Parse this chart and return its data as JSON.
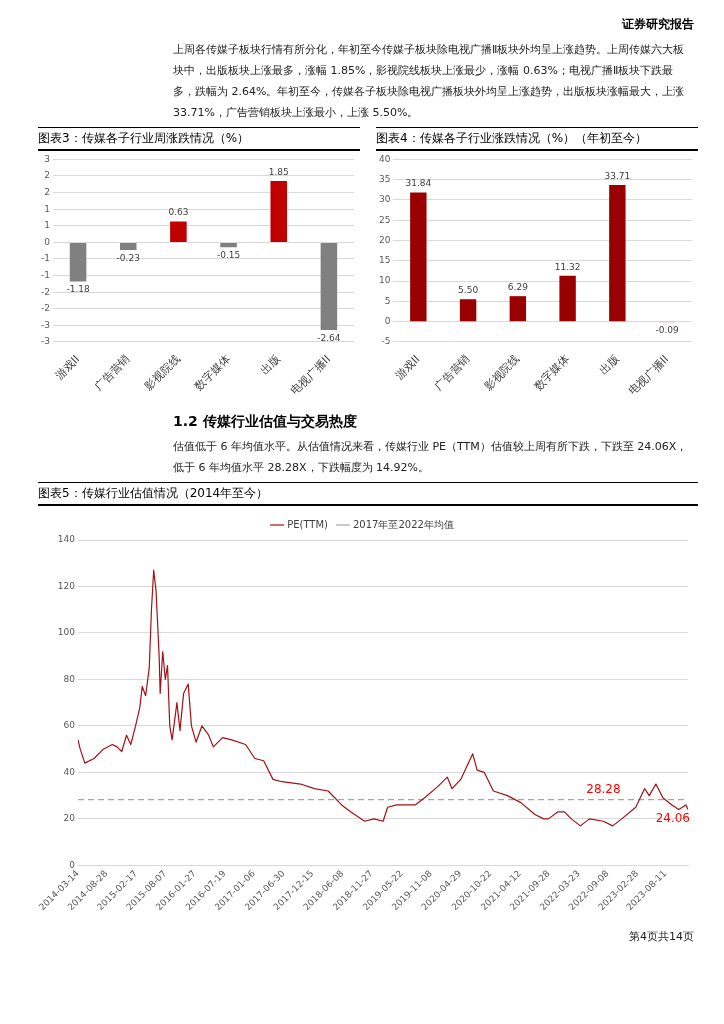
{
  "chart_data": [
    {
      "type": "other",
      "title": "证券研究报告",
      "annotations": [
        "上周各传媒子板块行情有所分化，年初至今传媒子板块除电视广播Ⅱ板块外均呈上涨趋势。上周传媒六大板块中，出版板块上涨最多，涨幅 1.85%，影视院线板块上涨最少，涨幅 0.63%；电视广播Ⅱ板块下跌最多，跌幅为 2.64%。年初至今，传媒各子板块除电视广播板块外均呈上涨趋势，出版板块涨幅最大，上涨 33.71%，广告营销板块上涨最小，上涨 5.50%。"
      ]
    },
    {
      "type": "bar",
      "title": "图表3：传媒各子行业周涨跌情况（%）",
      "categories": [
        "游戏II",
        "广告营销",
        "影视院线",
        "数字媒体",
        "出版",
        "电视广播II"
      ],
      "values": [
        -1.18,
        -0.23,
        0.63,
        -0.15,
        1.85,
        -2.64
      ],
      "colors": [
        "#808080",
        "#808080",
        "#c00000",
        "#808080",
        "#c00000",
        "#808080"
      ],
      "value_labels": [
        "-1.18",
        "-0.23",
        "0.63",
        "-0.15",
        "1.85",
        "-2.64"
      ],
      "ylim": [
        -3,
        2.5
      ],
      "yticks": [
        {
          "value": -3,
          "label": "-3"
        },
        {
          "value": -2.5,
          "label": "-3"
        },
        {
          "value": -2,
          "label": "-2"
        },
        {
          "value": -1.5,
          "label": "-2"
        },
        {
          "value": -1,
          "label": "-1"
        },
        {
          "value": -0.5,
          "label": "-1"
        },
        {
          "value": 0,
          "label": "0"
        },
        {
          "value": 0.5,
          "label": "1"
        },
        {
          "value": 1,
          "label": "1"
        },
        {
          "value": 1.5,
          "label": "2"
        },
        {
          "value": 2,
          "label": "2"
        },
        {
          "value": 2.5,
          "label": "3"
        }
      ],
      "grid": "y"
    },
    {
      "type": "bar",
      "title": "图表4：传媒各子行业涨跌情况（%）（年初至今）",
      "categories": [
        "游戏II",
        "广告营销",
        "影视院线",
        "数字媒体",
        "出版",
        "电视广播II"
      ],
      "values": [
        31.84,
        5.5,
        6.29,
        11.32,
        33.71,
        -0.09
      ],
      "color": "#990000",
      "value_labels": [
        "31.84",
        "5.50",
        "6.29",
        "11.32",
        "33.71",
        "-0.09"
      ],
      "ylim": [
        -5,
        40
      ],
      "yticks": [
        -5,
        0,
        5,
        10,
        15,
        20,
        25,
        30,
        35,
        40
      ],
      "grid": "y"
    },
    {
      "type": "other",
      "title": "1.2 传媒行业估值与交易热度",
      "annotations": [
        "估值低于 6 年均值水平。从估值情况来看，传媒行业 PE（TTM）估值较上周有所下跌，下跌至 24.06X，低于 6 年均值水平 28.28X，下跌幅度为 14.92%。"
      ]
    },
    {
      "type": "line",
      "title": "图表5：传媒行业估值情况（2014年至今）",
      "legend": "top",
      "grid": "y",
      "xlim": [
        "2014-03-14",
        "2023-12-22"
      ],
      "xticks": [
        "2014-03-14",
        "2014-08-28",
        "2015-02-17",
        "2015-08-07",
        "2016-01-27",
        "2016-07-19",
        "2017-01-06",
        "2017-06-30",
        "2017-12-15",
        "2018-06-08",
        "2018-11-27",
        "2019-05-22",
        "2019-11-08",
        "2020-04-29",
        "2020-10-22",
        "2021-04-12",
        "2021-09-28",
        "2022-03-23",
        "2022-09-08",
        "2023-02-28",
        "2023-08-11"
      ],
      "ylim": [
        0,
        140
      ],
      "yticks": [
        0,
        20,
        40,
        60,
        80,
        100,
        120,
        140
      ],
      "series": [
        {
          "name": "PE(TTM)",
          "color": "#a50f15",
          "x": [
            "2014-03-14",
            "2014-03-27",
            "2014-04-23",
            "2014-06-16",
            "2014-08-09",
            "2014-10-01",
            "2014-10-28",
            "2014-11-25",
            "2014-12-23",
            "2015-01-17",
            "2015-02-14",
            "2015-03-11",
            "2015-03-25",
            "2015-04-14",
            "2015-05-05",
            "2015-05-18",
            "2015-05-31",
            "2015-06-14",
            "2015-07-02",
            "2015-07-08",
            "2015-07-23",
            "2015-08-07",
            "2015-08-20",
            "2015-09-02",
            "2015-09-16",
            "2015-10-14",
            "2015-11-01",
            "2015-11-22",
            "2015-12-19",
            "2016-01-07",
            "2016-02-03",
            "2016-03-08",
            "2016-04-17",
            "2016-05-14",
            "2016-07-07",
            "2016-08-29",
            "2016-11-19",
            "2017-01-12",
            "2017-03-05",
            "2017-04-28",
            "2017-06-20",
            "2017-10-07",
            "2017-12-26",
            "2018-03-17",
            "2018-06-04",
            "2018-07-28",
            "2018-10-17",
            "2018-12-10",
            "2019-02-02",
            "2019-02-28",
            "2019-04-23",
            "2019-08-08",
            "2019-10-01",
            "2019-12-20",
            "2020-02-12",
            "2020-03-11",
            "2020-05-01",
            "2020-07-10",
            "2020-08-05",
            "2020-09-16",
            "2020-11-08",
            "2021-01-29",
            "2021-04-18",
            "2021-07-07",
            "2021-08-29",
            "2021-09-26",
            "2021-11-19",
            "2021-12-29",
            "2022-02-07",
            "2022-04-01",
            "2022-05-24",
            "2022-08-14",
            "2022-10-07",
            "2022-11-29",
            "2023-02-19",
            "2023-04-12",
            "2023-05-09",
            "2023-06-17",
            "2023-07-29",
            "2023-09-19",
            "2023-10-29",
            "2023-12-10",
            "2023-12-22"
          ],
          "values": [
            54,
            50,
            44,
            46,
            50,
            52,
            51,
            49,
            56,
            52,
            60,
            68,
            77,
            73,
            85,
            110,
            127,
            118,
            90,
            74,
            92,
            80,
            86,
            60,
            54,
            70,
            58,
            74,
            78,
            60,
            53,
            60,
            56,
            51,
            55,
            54,
            52,
            46,
            45,
            37,
            36,
            35,
            33,
            32,
            26,
            23,
            19,
            20,
            19,
            25,
            26,
            26,
            29,
            34,
            38,
            33,
            37,
            48,
            41,
            40,
            32,
            30,
            27,
            22,
            20,
            20,
            23,
            23,
            20,
            17,
            20,
            19,
            17,
            20,
            25,
            33,
            30,
            35,
            29,
            26,
            24,
            26,
            24.06
          ]
        },
        {
          "name": "2017年至2022年均值",
          "color": "#a6a6a6",
          "line_style": "dashed",
          "x": [
            "2014-03-14",
            "2023-12-22"
          ],
          "values": [
            28.28,
            28.28
          ]
        }
      ],
      "annotations": [
        {
          "text": "28.28",
          "x": "2022-08-14",
          "y": 28.28
        },
        {
          "text": "24.06",
          "x": "2023-12-22",
          "y": 24.06
        }
      ]
    },
    {
      "type": "other",
      "annotations": [
        "第4页共14页"
      ]
    }
  ]
}
